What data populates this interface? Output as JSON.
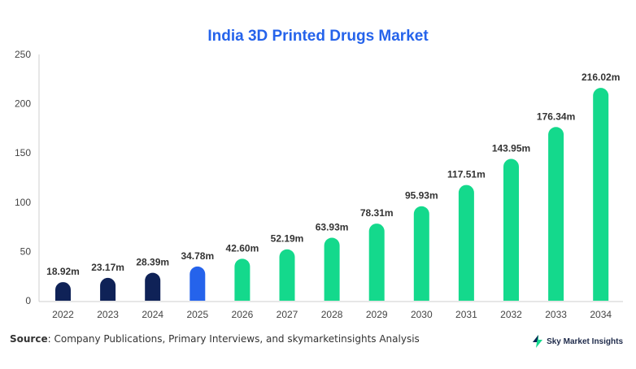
{
  "chart_data": {
    "type": "bar",
    "title": "India 3D Printed Drugs Market",
    "xlabel": "",
    "ylabel": "",
    "ylim": [
      0,
      250
    ],
    "yticks": [
      0,
      50,
      100,
      150,
      200,
      250
    ],
    "grid": false,
    "categories": [
      "2022",
      "2023",
      "2024",
      "2025",
      "2026",
      "2027",
      "2028",
      "2029",
      "2030",
      "2031",
      "2032",
      "2033",
      "2034"
    ],
    "values": [
      18.92,
      23.17,
      28.39,
      34.78,
      42.6,
      52.19,
      63.93,
      78.31,
      95.93,
      117.51,
      143.95,
      176.34,
      216.02
    ],
    "data_labels": [
      "18.92m",
      "23.17m",
      "28.39m",
      "34.78m",
      "42.60m",
      "52.19m",
      "63.93m",
      "78.31m",
      "95.93m",
      "117.51m",
      "143.95m",
      "176.34m",
      "216.02m"
    ],
    "bar_colors": [
      "#0f2257",
      "#0f2257",
      "#0f2257",
      "#2563eb",
      "#14d98c",
      "#14d98c",
      "#14d98c",
      "#14d98c",
      "#14d98c",
      "#14d98c",
      "#14d98c",
      "#14d98c",
      "#14d98c"
    ]
  },
  "footer": {
    "source_label": "Source",
    "source_text": ": Company Publications, Primary Interviews, and skymarketinsights Analysis",
    "brand_name": "Sky Market Insights"
  },
  "colors": {
    "title": "#2563eb",
    "historical": "#0f2257",
    "base_year": "#2563eb",
    "forecast": "#14d98c"
  },
  "icons": {
    "brand": "lightning-bolt-icon"
  }
}
